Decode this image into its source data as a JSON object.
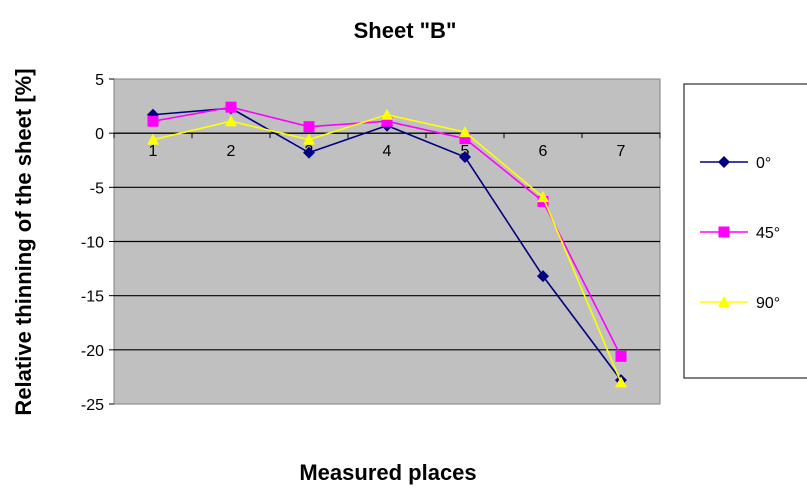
{
  "chart_data": {
    "type": "line",
    "title": "Sheet \"B\"",
    "xlabel": "Measured places",
    "ylabel": "Relative thinning of the sheet [%]",
    "categories": [
      "1",
      "2",
      "3",
      "4",
      "5",
      "6",
      "7"
    ],
    "ylim": [
      -25,
      5
    ],
    "yticks": [
      5,
      0,
      -5,
      -10,
      -15,
      -20,
      -25
    ],
    "grid": true,
    "legend_position": "right",
    "plot_background": "#c0c0c0",
    "series": [
      {
        "name": "0°",
        "color": "#000080",
        "marker": "diamond",
        "values": [
          1.7,
          2.3,
          -1.8,
          0.7,
          -2.2,
          -13.2,
          -22.8
        ]
      },
      {
        "name": "45°",
        "color": "#ff00ff",
        "marker": "square",
        "values": [
          1.1,
          2.4,
          0.6,
          1.1,
          -0.5,
          -6.3,
          -20.6
        ]
      },
      {
        "name": "90°",
        "color": "#ffff00",
        "marker": "triangle",
        "values": [
          -0.6,
          1.1,
          -0.6,
          1.7,
          0.1,
          -5.9,
          -23.0
        ]
      }
    ]
  }
}
